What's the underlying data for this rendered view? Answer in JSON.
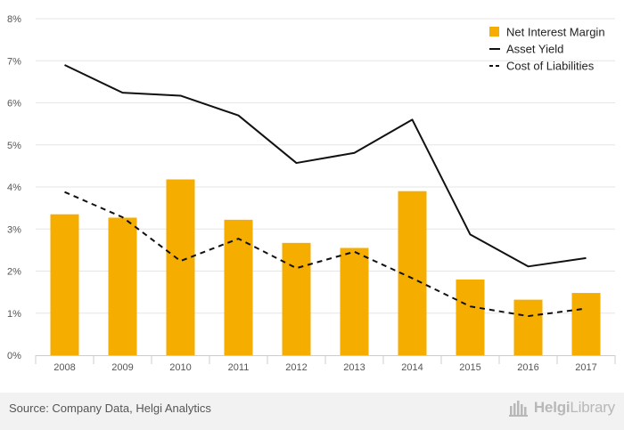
{
  "chart_data": {
    "type": "bar",
    "categories": [
      "2008",
      "2009",
      "2010",
      "2011",
      "2012",
      "2013",
      "2014",
      "2015",
      "2016",
      "2017"
    ],
    "series": [
      {
        "name": "Net Interest Margin",
        "kind": "bar",
        "color": "#f5ad00",
        "values": [
          3.35,
          3.27,
          4.18,
          3.22,
          2.67,
          2.55,
          3.9,
          1.8,
          1.32,
          1.48
        ]
      },
      {
        "name": "Asset Yield",
        "kind": "line",
        "style": "solid",
        "color": "#111111",
        "values": [
          6.9,
          6.24,
          6.17,
          5.7,
          4.57,
          4.81,
          5.6,
          2.87,
          2.11,
          2.31
        ]
      },
      {
        "name": "Cost of Liabilities",
        "kind": "line",
        "style": "dashed",
        "color": "#111111",
        "values": [
          3.88,
          3.28,
          2.24,
          2.77,
          2.07,
          2.46,
          1.83,
          1.16,
          0.93,
          1.11
        ]
      }
    ],
    "y_ticks": [
      "0%",
      "1%",
      "2%",
      "3%",
      "4%",
      "5%",
      "6%",
      "7%",
      "8%"
    ],
    "ylim": [
      0,
      8
    ],
    "grid": true,
    "legend_position": "top-right"
  },
  "footer": {
    "source": "Source: Company Data, Helgi Analytics",
    "brand_prefix": "Helgi",
    "brand_suffix": "Library"
  }
}
